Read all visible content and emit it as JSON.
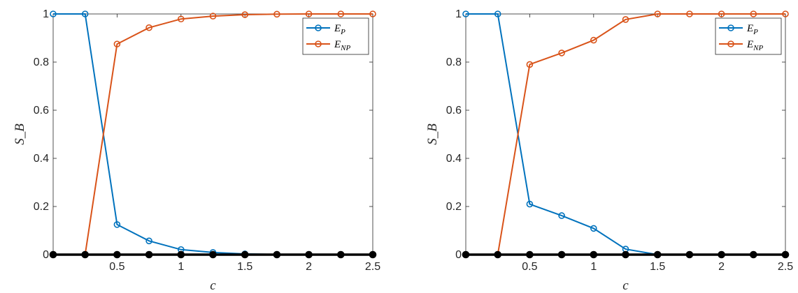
{
  "chart_data": [
    {
      "type": "line",
      "title": "",
      "xlabel": "c",
      "ylabel": "S_B",
      "xlim": [
        0,
        2.5
      ],
      "ylim": [
        0,
        1
      ],
      "xticks": [
        "0.5",
        "1",
        "1.5",
        "2",
        "2.5"
      ],
      "yticks": [
        "0",
        "0.2",
        "0.4",
        "0.6",
        "0.8",
        "1"
      ],
      "grid": false,
      "legend": "top-right",
      "x": [
        0,
        0.25,
        0.5,
        0.75,
        1,
        1.25,
        1.5,
        1.75,
        2,
        2.25,
        2.5
      ],
      "series": [
        {
          "name": "E_P",
          "color": "#0072BD",
          "values": [
            1,
            1,
            0.125,
            0.057,
            0.021,
            0.009,
            0.003,
            0.001,
            0,
            0,
            0
          ]
        },
        {
          "name": "E_NP",
          "color": "#D95319",
          "values": [
            0,
            0,
            0.875,
            0.943,
            0.979,
            0.991,
            0.997,
            0.999,
            1,
            1,
            1
          ]
        },
        {
          "name": "",
          "color": "#000000",
          "values": [
            0,
            0,
            0,
            0,
            0,
            0,
            0,
            0,
            0,
            0,
            0
          ]
        }
      ],
      "legend_entries": [
        {
          "base": "E",
          "sub": "P"
        },
        {
          "base": "E",
          "sub": "NP"
        }
      ]
    },
    {
      "type": "line",
      "title": "",
      "xlabel": "c",
      "ylabel": "S_B",
      "xlim": [
        0,
        2.5
      ],
      "ylim": [
        0,
        1
      ],
      "xticks": [
        "0.5",
        "1",
        "1.5",
        "2",
        "2.5"
      ],
      "yticks": [
        "0",
        "0.2",
        "0.4",
        "0.6",
        "0.8",
        "1"
      ],
      "grid": false,
      "legend": "top-right",
      "x": [
        0,
        0.25,
        0.5,
        0.75,
        1,
        1.25,
        1.5,
        1.75,
        2,
        2.25,
        2.5
      ],
      "series": [
        {
          "name": "E_P",
          "color": "#0072BD",
          "values": [
            1,
            1,
            0.21,
            0.162,
            0.109,
            0.023,
            0,
            0,
            0,
            0,
            0
          ]
        },
        {
          "name": "E_NP",
          "color": "#D95319",
          "values": [
            0,
            0,
            0.79,
            0.838,
            0.891,
            0.977,
            1,
            1,
            1,
            1,
            1
          ]
        },
        {
          "name": "",
          "color": "#000000",
          "values": [
            0,
            0,
            0,
            0,
            0,
            0,
            0,
            0,
            0,
            0,
            0
          ]
        }
      ],
      "legend_entries": [
        {
          "base": "E",
          "sub": "P"
        },
        {
          "base": "E",
          "sub": "NP"
        }
      ]
    }
  ]
}
